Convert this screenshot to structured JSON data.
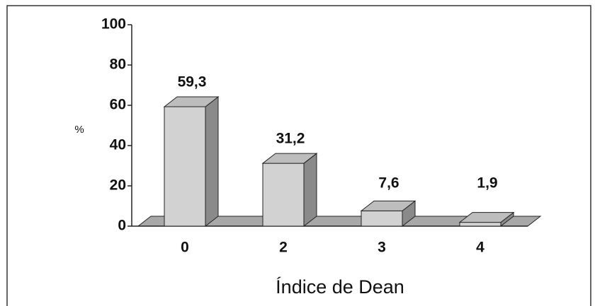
{
  "chart_data": {
    "type": "bar3d",
    "categories": [
      "0",
      "2",
      "3",
      "4"
    ],
    "values": [
      59.3,
      31.2,
      7.6,
      1.9
    ],
    "value_labels": [
      "59,3",
      "31,2",
      "7,6",
      "1,9"
    ],
    "y_label": "%",
    "x_label": "Índice de Dean",
    "ylim": [
      0,
      100
    ],
    "yticks": [
      0,
      20,
      40,
      60,
      80,
      100
    ],
    "color": "#d2d2d2"
  }
}
